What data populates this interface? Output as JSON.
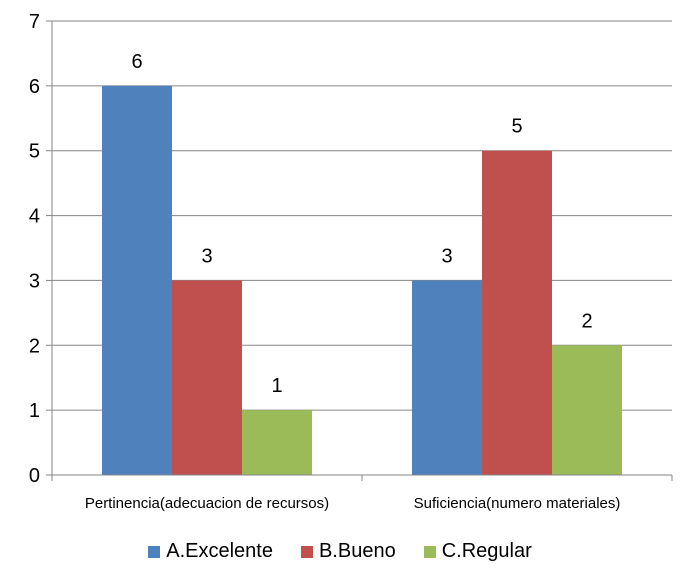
{
  "chart_data": {
    "type": "bar",
    "categories": [
      "Pertinencia(adecuacion de recursos)",
      "Suficiencia(numero materiales)"
    ],
    "series": [
      {
        "name": "A.Excelente",
        "values": [
          6,
          3
        ],
        "color": "#4F81BD"
      },
      {
        "name": "B.Bueno",
        "values": [
          3,
          5
        ],
        "color": "#C0504D"
      },
      {
        "name": "C.Regular",
        "values": [
          1,
          2
        ],
        "color": "#9BBB59"
      }
    ],
    "ylim": [
      0,
      7
    ],
    "yticks": [
      0,
      1,
      2,
      3,
      4,
      5,
      6,
      7
    ],
    "grid": true,
    "legend": "bottom",
    "data_labels": true
  }
}
